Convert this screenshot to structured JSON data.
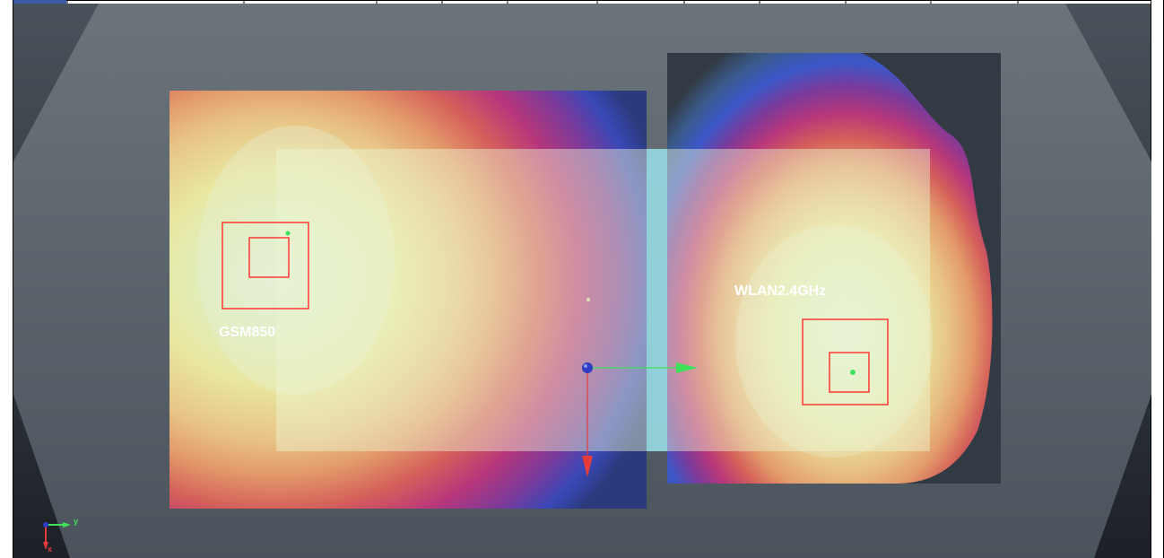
{
  "labels": {
    "gsm": "GSM850",
    "wlan": "WLAN2.4GHz"
  },
  "axes": {
    "y": "y",
    "x": "x"
  },
  "colors": {
    "background_outer": "#2a2f36",
    "background_hex": "#5a626b",
    "hotspot_box": "#ff2b2b",
    "phone_overlay": "#e9f3c8",
    "divider": "#8fd7e3",
    "axis_y": "#3fe05a",
    "axis_x": "#e53b3b",
    "axis_origin": "#2e3cc4"
  }
}
